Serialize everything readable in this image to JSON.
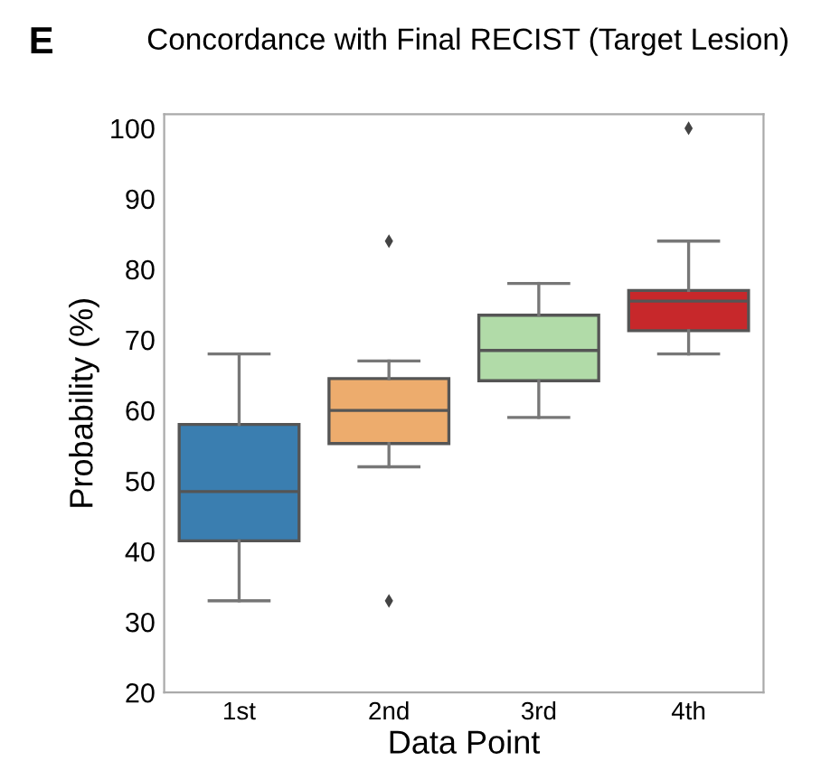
{
  "chart_data": {
    "type": "box",
    "title": "Concordance with Final RECIST (Target Lesion)",
    "xlabel": "Data Point",
    "ylabel": "Probability (%)",
    "annotations": [
      "E"
    ],
    "categories": [
      "1st",
      "2nd",
      "3rd",
      "4th"
    ],
    "colors": [
      "#3a7eb0",
      "#edac6d",
      "#b1dba8",
      "#c7282b"
    ],
    "boxes": [
      {
        "low": 33,
        "q1": 41.5,
        "median": 48.5,
        "q3": 58,
        "high": 68
      },
      {
        "low": 52,
        "q1": 55.3,
        "median": 60,
        "q3": 64.5,
        "high": 67,
        "outliers": [
          84,
          33
        ]
      },
      {
        "low": 59,
        "q1": 64.2,
        "median": 68.5,
        "q3": 73.5,
        "high": 78
      },
      {
        "low": 68,
        "q1": 71.3,
        "median": 75.5,
        "q3": 77,
        "high": 84,
        "outliers": [
          100
        ]
      }
    ],
    "ylim": [
      20,
      102
    ],
    "yticks": [
      20,
      30,
      40,
      50,
      60,
      70,
      80,
      90,
      100
    ],
    "grid": false
  }
}
